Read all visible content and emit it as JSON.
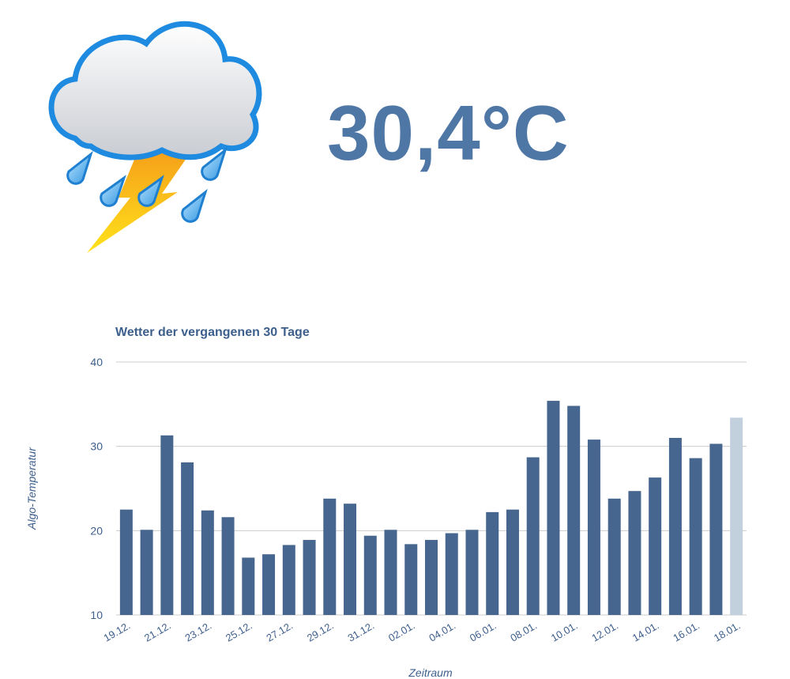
{
  "current": {
    "temperature": "30,4°C",
    "icon": "cloud-rain-thunder-icon"
  },
  "chart_data": {
    "type": "bar",
    "title": "Wetter der vergangenen 30 Tage",
    "xlabel": "Zeitraum",
    "ylabel": "Algo-Temperatur",
    "ylim": [
      10,
      40
    ],
    "yticks": [
      10,
      20,
      30,
      40
    ],
    "grid": true,
    "categories": [
      "19.12.",
      "20.12.",
      "21.12.",
      "22.12.",
      "23.12.",
      "24.12.",
      "25.12.",
      "26.12.",
      "27.12.",
      "28.12.",
      "29.12.",
      "30.12.",
      "31.12.",
      "01.01.",
      "02.01.",
      "03.01.",
      "04.01.",
      "05.01.",
      "06.01.",
      "07.01.",
      "08.01.",
      "09.01.",
      "10.01.",
      "11.01.",
      "12.01.",
      "13.01.",
      "14.01.",
      "15.01.",
      "16.01.",
      "17.01.",
      "18.01."
    ],
    "xtick_labels": [
      "19.12.",
      "21.12.",
      "23.12.",
      "25.12.",
      "27.12.",
      "29.12.",
      "31.12.",
      "02.01.",
      "04.01.",
      "06.01.",
      "08.01.",
      "10.01.",
      "12.01.",
      "14.01.",
      "16.01.",
      "18.01."
    ],
    "values": [
      22.5,
      20.1,
      31.3,
      28.1,
      22.4,
      21.6,
      16.8,
      17.2,
      18.3,
      18.9,
      23.8,
      23.2,
      19.4,
      20.1,
      18.4,
      18.9,
      19.7,
      20.1,
      22.2,
      22.5,
      28.7,
      35.4,
      34.8,
      30.8,
      23.8,
      24.7,
      26.3,
      31.0,
      28.6,
      30.3,
      33.4
    ],
    "colors": {
      "bar": "#46658f",
      "highlight": "#c2d0de",
      "text": "#3d5f8d",
      "grid": "#cccccc"
    }
  }
}
